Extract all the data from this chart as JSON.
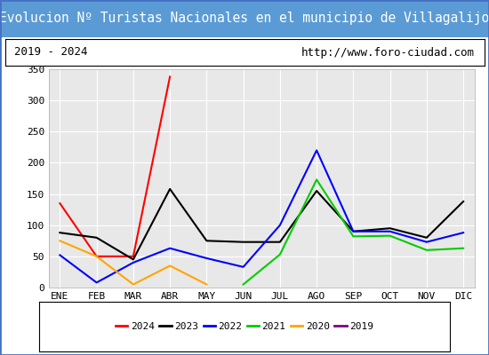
{
  "title": "Evolucion Nº Turistas Nacionales en el municipio de Villagalijo",
  "subtitle_left": "2019 - 2024",
  "subtitle_right": "http://www.foro-ciudad.com",
  "months": [
    "ENE",
    "FEB",
    "MAR",
    "ABR",
    "MAY",
    "JUN",
    "JUL",
    "AGO",
    "SEP",
    "OCT",
    "NOV",
    "DIC"
  ],
  "ylim": [
    0,
    350
  ],
  "yticks": [
    0,
    50,
    100,
    150,
    200,
    250,
    300,
    350
  ],
  "series": {
    "2024": {
      "color": "red",
      "data": [
        135,
        50,
        50,
        338,
        null,
        null,
        null,
        null,
        null,
        null,
        null,
        null
      ]
    },
    "2023": {
      "color": "black",
      "data": [
        88,
        80,
        45,
        158,
        75,
        73,
        73,
        155,
        90,
        95,
        80,
        138
      ]
    },
    "2022": {
      "color": "blue",
      "data": [
        52,
        8,
        40,
        63,
        47,
        33,
        100,
        220,
        90,
        90,
        73,
        88
      ]
    },
    "2021": {
      "color": "#00cc00",
      "data": [
        null,
        null,
        null,
        null,
        null,
        5,
        53,
        173,
        82,
        83,
        60,
        63
      ]
    },
    "2020": {
      "color": "orange",
      "data": [
        75,
        50,
        5,
        35,
        5,
        null,
        null,
        null,
        null,
        null,
        null,
        null
      ]
    },
    "2019": {
      "color": "purple",
      "data": [
        null,
        null,
        null,
        null,
        null,
        null,
        null,
        null,
        null,
        null,
        null,
        null
      ]
    }
  },
  "title_bg_color": "#5b9bd5",
  "title_text_color": "white",
  "plot_bg_color": "#e8e8e8",
  "grid_color": "#ffffff",
  "fig_bg_color": "#ffffff",
  "border_color": "#4472c4",
  "title_fontsize": 10.5,
  "tick_fontsize": 8,
  "legend_fontsize": 8
}
